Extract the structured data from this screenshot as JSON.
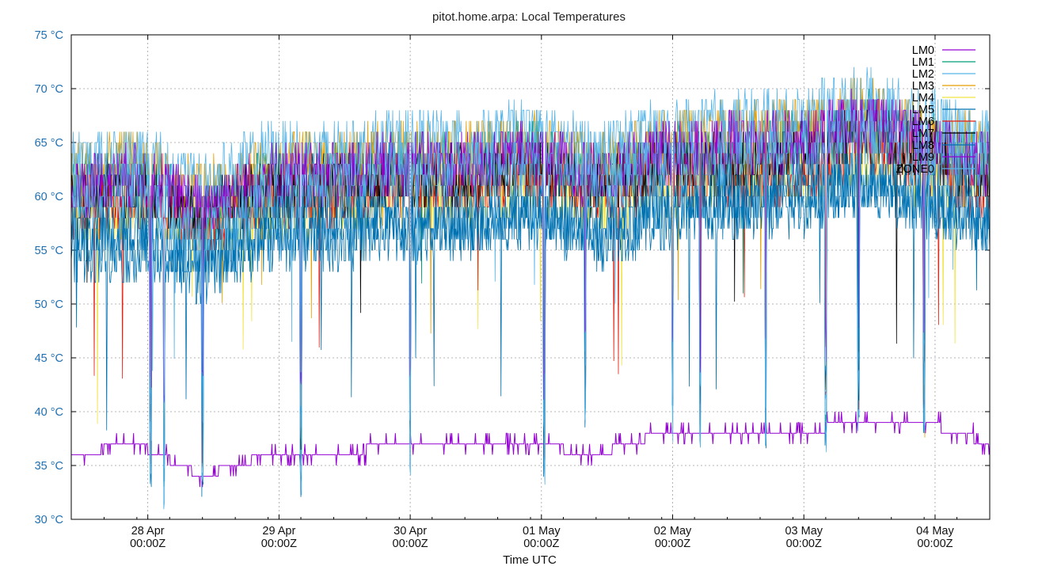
{
  "chart_data": {
    "type": "line",
    "title": "pitot.home.arpa: Local Temperatures",
    "xlabel": "Time UTC",
    "ylabel": "",
    "y_unit": "°C",
    "ylim": [
      30,
      75
    ],
    "y_ticks": [
      30,
      35,
      40,
      45,
      50,
      55,
      60,
      65,
      70,
      75
    ],
    "y_tick_labels": [
      "30 °C",
      "35 °C",
      "40 °C",
      "45 °C",
      "50 °C",
      "55 °C",
      "60 °C",
      "65 °C",
      "70 °C",
      "75 °C"
    ],
    "xlim": [
      "2025-04-27T10:00Z",
      "2025-05-04T10:00Z"
    ],
    "x_ticks": [
      {
        "x": "2025-04-28T00:00Z",
        "date": "28 Apr",
        "time": "00:00Z"
      },
      {
        "x": "2025-04-29T00:00Z",
        "date": "29 Apr",
        "time": "00:00Z"
      },
      {
        "x": "2025-04-30T00:00Z",
        "date": "30 Apr",
        "time": "00:00Z"
      },
      {
        "x": "2025-05-01T00:00Z",
        "date": "01 May",
        "time": "00:00Z"
      },
      {
        "x": "2025-05-02T00:00Z",
        "date": "02 May",
        "time": "00:00Z"
      },
      {
        "x": "2025-05-03T00:00Z",
        "date": "03 May",
        "time": "00:00Z"
      },
      {
        "x": "2025-05-04T00:00Z",
        "date": "04 May",
        "time": "00:00Z"
      }
    ],
    "grid": true,
    "legend_position": "top-right",
    "x": [
      "2025-04-27T10:00Z",
      "2025-04-27T22:00Z",
      "2025-04-28T10:00Z",
      "2025-04-28T22:00Z",
      "2025-04-29T10:00Z",
      "2025-04-29T22:00Z",
      "2025-04-30T10:00Z",
      "2025-04-30T22:00Z",
      "2025-05-01T10:00Z",
      "2025-05-01T22:00Z",
      "2025-05-02T10:00Z",
      "2025-05-02T22:00Z",
      "2025-05-03T10:00Z",
      "2025-05-03T22:00Z",
      "2025-05-04T10:00Z"
    ],
    "series": [
      {
        "name": "LM0",
        "color": "#9400d3",
        "values": [
          36,
          37,
          34,
          36,
          36,
          37,
          37,
          37,
          36,
          38,
          38,
          38,
          39,
          39,
          37
        ]
      },
      {
        "name": "LM1",
        "color": "#009e73",
        "values": [
          61,
          62,
          58,
          62,
          62,
          63,
          63,
          64,
          62,
          64,
          64,
          65,
          67,
          65,
          63
        ]
      },
      {
        "name": "LM2",
        "color": "#56b4e9",
        "values": [
          63,
          64,
          61,
          64,
          64,
          65,
          65,
          66,
          64,
          66,
          67,
          67,
          69,
          67,
          65
        ]
      },
      {
        "name": "LM3",
        "color": "#e69f00",
        "values": [
          62,
          63,
          60,
          63,
          63,
          64,
          64,
          65,
          63,
          65,
          66,
          66,
          68,
          66,
          64
        ]
      },
      {
        "name": "LM4",
        "color": "#f0e442",
        "values": [
          58,
          59,
          57,
          59,
          59,
          60,
          60,
          61,
          59,
          61,
          62,
          62,
          64,
          62,
          61
        ]
      },
      {
        "name": "LM5",
        "color": "#0072b2",
        "values": [
          55,
          55,
          53,
          56,
          56,
          57,
          57,
          58,
          56,
          58,
          59,
          59,
          61,
          59,
          57
        ]
      },
      {
        "name": "LM6",
        "color": "#e51e10",
        "values": [
          59,
          60,
          57,
          60,
          60,
          61,
          61,
          62,
          60,
          62,
          62,
          62,
          65,
          63,
          60
        ]
      },
      {
        "name": "LM7",
        "color": "#000000",
        "values": [
          60,
          61,
          58,
          61,
          61,
          62,
          62,
          63,
          61,
          63,
          63,
          64,
          66,
          64,
          62
        ]
      },
      {
        "name": "LM8",
        "color": "#0072b2",
        "values": [
          57,
          57,
          54,
          58,
          58,
          58,
          58,
          59,
          57,
          59,
          60,
          60,
          62,
          60,
          58
        ]
      },
      {
        "name": "LM9",
        "color": "#9400d3",
        "values": [
          61,
          62,
          59,
          62,
          62,
          63,
          63,
          64,
          62,
          64,
          65,
          65,
          67,
          65,
          63
        ]
      },
      {
        "name": "ZONE0",
        "color": "#56b4e9",
        "values": [
          60,
          61,
          56,
          60,
          61,
          62,
          62,
          63,
          61,
          63,
          64,
          64,
          66,
          64,
          62
        ]
      }
    ],
    "dips": [
      {
        "x": "2025-04-28T00:30Z",
        "low": 33
      },
      {
        "x": "2025-04-28T03:00Z",
        "low": 30
      },
      {
        "x": "2025-04-28T10:00Z",
        "low": 32
      },
      {
        "x": "2025-04-29T04:00Z",
        "low": 32
      },
      {
        "x": "2025-04-30T00:00Z",
        "low": 34
      },
      {
        "x": "2025-05-01T00:30Z",
        "low": 33
      },
      {
        "x": "2025-05-01T08:00Z",
        "low": 38
      },
      {
        "x": "2025-05-02T00:00Z",
        "low": 37
      },
      {
        "x": "2025-05-02T05:00Z",
        "low": 35
      },
      {
        "x": "2025-05-02T17:00Z",
        "low": 36
      },
      {
        "x": "2025-05-03T04:00Z",
        "low": 36
      },
      {
        "x": "2025-05-03T10:00Z",
        "low": 37
      },
      {
        "x": "2025-05-03T22:00Z",
        "low": 38
      }
    ]
  }
}
